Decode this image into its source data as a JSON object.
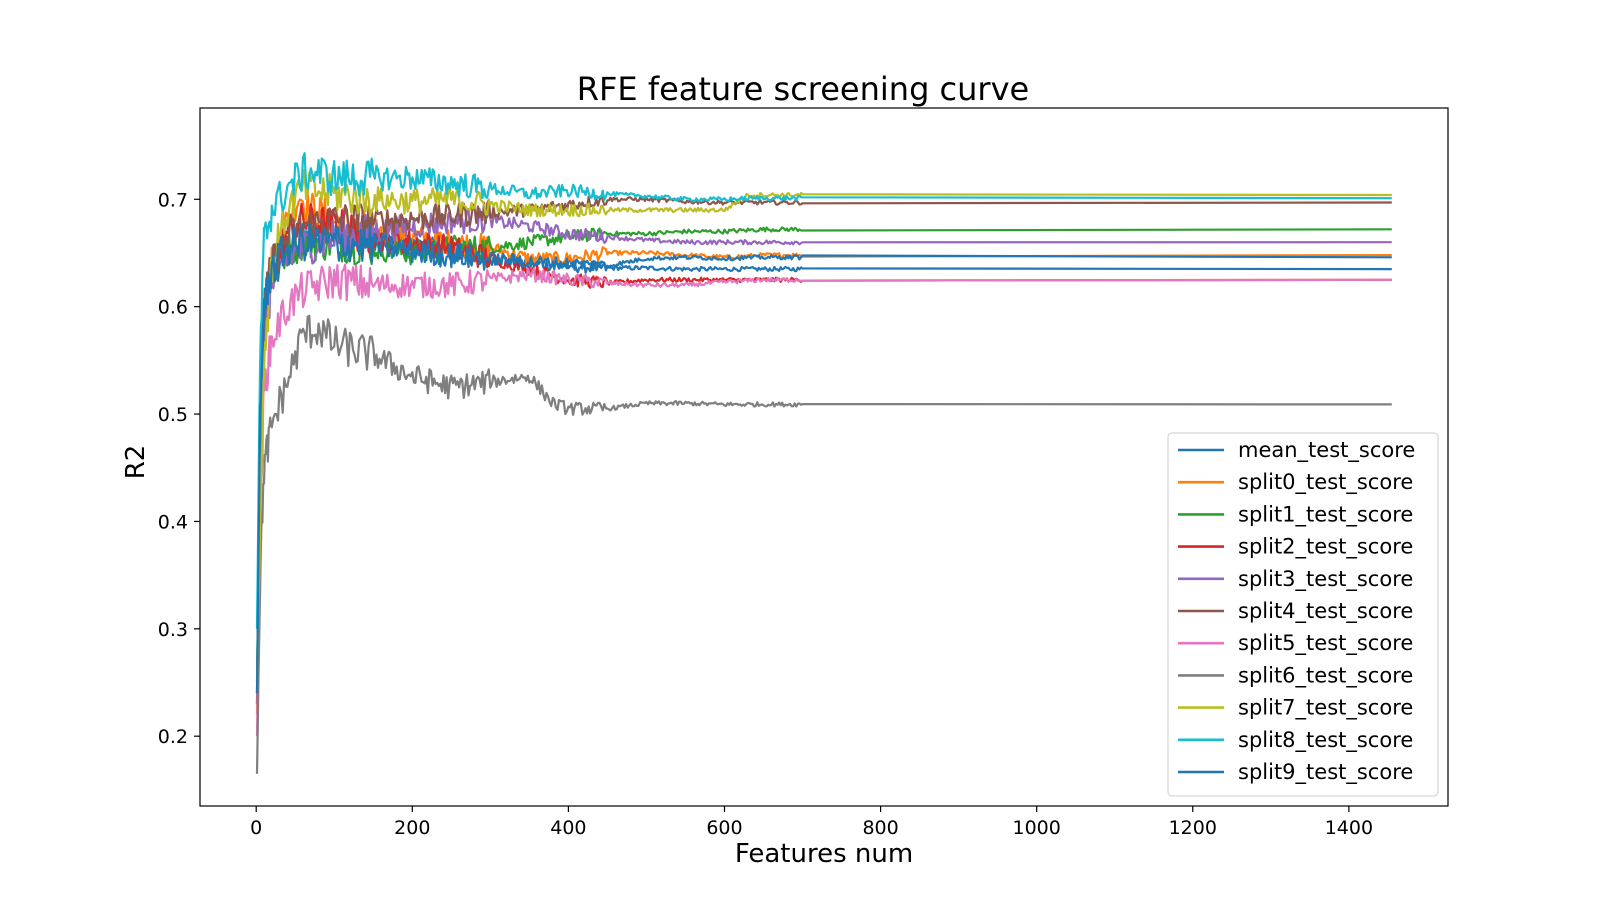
{
  "chart_data": {
    "type": "line",
    "title": "RFE feature screening curve",
    "xlabel": "Features num",
    "ylabel": "R2",
    "xlim": [
      -72,
      1527
    ],
    "ylim": [
      0.135,
      0.785
    ],
    "xticks": [
      0,
      200,
      400,
      600,
      800,
      1000,
      1200,
      1400
    ],
    "yticks": [
      0.2,
      0.3,
      0.4,
      0.5,
      0.6,
      0.7
    ],
    "ytick_labels": [
      "0.2",
      "0.3",
      "0.4",
      "0.5",
      "0.6",
      "0.7"
    ],
    "grid": false,
    "legend_position": "lower-right",
    "series": [
      {
        "name": "mean_test_score",
        "color": "#1f77b4",
        "points": [
          [
            1,
            0.24
          ],
          [
            5,
            0.5
          ],
          [
            10,
            0.6
          ],
          [
            20,
            0.63
          ],
          [
            40,
            0.65
          ],
          [
            60,
            0.66
          ],
          [
            80,
            0.665
          ],
          [
            100,
            0.66
          ],
          [
            150,
            0.66
          ],
          [
            200,
            0.655
          ],
          [
            250,
            0.65
          ],
          [
            300,
            0.645
          ],
          [
            350,
            0.64
          ],
          [
            400,
            0.638
          ],
          [
            450,
            0.636
          ],
          [
            500,
            0.636
          ],
          [
            550,
            0.635
          ],
          [
            600,
            0.635
          ],
          [
            650,
            0.635
          ],
          [
            1455,
            0.635
          ]
        ]
      },
      {
        "name": "split0_test_score",
        "color": "#ff7f0e",
        "points": [
          [
            1,
            0.22
          ],
          [
            5,
            0.45
          ],
          [
            10,
            0.58
          ],
          [
            20,
            0.64
          ],
          [
            40,
            0.68
          ],
          [
            55,
            0.705
          ],
          [
            70,
            0.69
          ],
          [
            100,
            0.68
          ],
          [
            150,
            0.67
          ],
          [
            200,
            0.665
          ],
          [
            250,
            0.66
          ],
          [
            300,
            0.655
          ],
          [
            350,
            0.645
          ],
          [
            400,
            0.645
          ],
          [
            450,
            0.65
          ],
          [
            500,
            0.65
          ],
          [
            550,
            0.648
          ],
          [
            600,
            0.646
          ],
          [
            650,
            0.648
          ],
          [
            1455,
            0.648
          ]
        ]
      },
      {
        "name": "split1_test_score",
        "color": "#2ca02c",
        "points": [
          [
            1,
            0.25
          ],
          [
            5,
            0.48
          ],
          [
            10,
            0.59
          ],
          [
            20,
            0.63
          ],
          [
            40,
            0.655
          ],
          [
            60,
            0.66
          ],
          [
            100,
            0.66
          ],
          [
            150,
            0.655
          ],
          [
            200,
            0.65
          ],
          [
            250,
            0.655
          ],
          [
            300,
            0.655
          ],
          [
            350,
            0.66
          ],
          [
            400,
            0.665
          ],
          [
            450,
            0.668
          ],
          [
            500,
            0.668
          ],
          [
            550,
            0.67
          ],
          [
            600,
            0.67
          ],
          [
            650,
            0.672
          ],
          [
            1455,
            0.672
          ]
        ]
      },
      {
        "name": "split2_test_score",
        "color": "#d62728",
        "points": [
          [
            1,
            0.23
          ],
          [
            5,
            0.46
          ],
          [
            10,
            0.58
          ],
          [
            20,
            0.63
          ],
          [
            40,
            0.67
          ],
          [
            60,
            0.68
          ],
          [
            100,
            0.675
          ],
          [
            150,
            0.665
          ],
          [
            200,
            0.66
          ],
          [
            250,
            0.655
          ],
          [
            300,
            0.645
          ],
          [
            350,
            0.635
          ],
          [
            400,
            0.625
          ],
          [
            450,
            0.622
          ],
          [
            500,
            0.625
          ],
          [
            550,
            0.625
          ],
          [
            600,
            0.625
          ],
          [
            650,
            0.625
          ],
          [
            1455,
            0.625
          ]
        ]
      },
      {
        "name": "split3_test_score",
        "color": "#9467bd",
        "points": [
          [
            1,
            0.24
          ],
          [
            5,
            0.47
          ],
          [
            10,
            0.57
          ],
          [
            20,
            0.62
          ],
          [
            40,
            0.645
          ],
          [
            60,
            0.655
          ],
          [
            100,
            0.665
          ],
          [
            150,
            0.67
          ],
          [
            200,
            0.675
          ],
          [
            250,
            0.68
          ],
          [
            300,
            0.68
          ],
          [
            350,
            0.675
          ],
          [
            400,
            0.668
          ],
          [
            450,
            0.665
          ],
          [
            500,
            0.662
          ],
          [
            550,
            0.66
          ],
          [
            600,
            0.66
          ],
          [
            650,
            0.66
          ],
          [
            1455,
            0.66
          ]
        ]
      },
      {
        "name": "split4_test_score",
        "color": "#8c564b",
        "points": [
          [
            1,
            0.23
          ],
          [
            5,
            0.48
          ],
          [
            10,
            0.6
          ],
          [
            20,
            0.64
          ],
          [
            40,
            0.665
          ],
          [
            60,
            0.675
          ],
          [
            100,
            0.68
          ],
          [
            150,
            0.68
          ],
          [
            200,
            0.682
          ],
          [
            250,
            0.685
          ],
          [
            300,
            0.688
          ],
          [
            350,
            0.69
          ],
          [
            400,
            0.695
          ],
          [
            450,
            0.7
          ],
          [
            500,
            0.7
          ],
          [
            550,
            0.698
          ],
          [
            600,
            0.697
          ],
          [
            650,
            0.697
          ],
          [
            1455,
            0.697
          ]
        ]
      },
      {
        "name": "split5_test_score",
        "color": "#e377c2",
        "points": [
          [
            1,
            0.2
          ],
          [
            5,
            0.4
          ],
          [
            10,
            0.52
          ],
          [
            20,
            0.57
          ],
          [
            40,
            0.6
          ],
          [
            60,
            0.615
          ],
          [
            100,
            0.625
          ],
          [
            150,
            0.62
          ],
          [
            200,
            0.62
          ],
          [
            250,
            0.62
          ],
          [
            300,
            0.625
          ],
          [
            350,
            0.63
          ],
          [
            400,
            0.625
          ],
          [
            450,
            0.622
          ],
          [
            500,
            0.62
          ],
          [
            550,
            0.62
          ],
          [
            600,
            0.623
          ],
          [
            650,
            0.625
          ],
          [
            1455,
            0.625
          ]
        ]
      },
      {
        "name": "split6_test_score",
        "color": "#7f7f7f",
        "points": [
          [
            1,
            0.165
          ],
          [
            5,
            0.35
          ],
          [
            10,
            0.45
          ],
          [
            20,
            0.49
          ],
          [
            40,
            0.53
          ],
          [
            60,
            0.575
          ],
          [
            80,
            0.58
          ],
          [
            100,
            0.565
          ],
          [
            150,
            0.555
          ],
          [
            200,
            0.535
          ],
          [
            250,
            0.525
          ],
          [
            300,
            0.53
          ],
          [
            350,
            0.535
          ],
          [
            380,
            0.51
          ],
          [
            400,
            0.505
          ],
          [
            450,
            0.505
          ],
          [
            500,
            0.51
          ],
          [
            550,
            0.51
          ],
          [
            600,
            0.509
          ],
          [
            650,
            0.509
          ],
          [
            1455,
            0.509
          ]
        ]
      },
      {
        "name": "split7_test_score",
        "color": "#bcbd22",
        "points": [
          [
            1,
            0.25
          ],
          [
            5,
            0.4
          ],
          [
            10,
            0.55
          ],
          [
            20,
            0.64
          ],
          [
            40,
            0.69
          ],
          [
            60,
            0.71
          ],
          [
            100,
            0.705
          ],
          [
            150,
            0.7
          ],
          [
            200,
            0.698
          ],
          [
            250,
            0.7
          ],
          [
            300,
            0.695
          ],
          [
            350,
            0.69
          ],
          [
            400,
            0.69
          ],
          [
            450,
            0.69
          ],
          [
            500,
            0.69
          ],
          [
            550,
            0.69
          ],
          [
            600,
            0.69
          ],
          [
            630,
            0.704
          ],
          [
            1455,
            0.704
          ]
        ]
      },
      {
        "name": "split8_test_score",
        "color": "#17becf",
        "points": [
          [
            1,
            0.3
          ],
          [
            5,
            0.55
          ],
          [
            10,
            0.66
          ],
          [
            20,
            0.69
          ],
          [
            40,
            0.71
          ],
          [
            60,
            0.725
          ],
          [
            80,
            0.725
          ],
          [
            100,
            0.72
          ],
          [
            150,
            0.72
          ],
          [
            200,
            0.72
          ],
          [
            250,
            0.715
          ],
          [
            300,
            0.71
          ],
          [
            350,
            0.705
          ],
          [
            400,
            0.708
          ],
          [
            450,
            0.705
          ],
          [
            500,
            0.703
          ],
          [
            550,
            0.7
          ],
          [
            600,
            0.7
          ],
          [
            650,
            0.701
          ],
          [
            1455,
            0.701
          ]
        ]
      },
      {
        "name": "split9_test_score",
        "color": "#1f77b4",
        "points": [
          [
            1,
            0.24
          ],
          [
            5,
            0.5
          ],
          [
            10,
            0.6
          ],
          [
            20,
            0.635
          ],
          [
            40,
            0.655
          ],
          [
            60,
            0.66
          ],
          [
            100,
            0.66
          ],
          [
            150,
            0.658
          ],
          [
            200,
            0.652
          ],
          [
            250,
            0.648
          ],
          [
            300,
            0.645
          ],
          [
            350,
            0.642
          ],
          [
            400,
            0.64
          ],
          [
            450,
            0.638
          ],
          [
            500,
            0.645
          ],
          [
            550,
            0.646
          ],
          [
            600,
            0.645
          ],
          [
            650,
            0.646
          ],
          [
            1455,
            0.646
          ]
        ]
      }
    ]
  }
}
